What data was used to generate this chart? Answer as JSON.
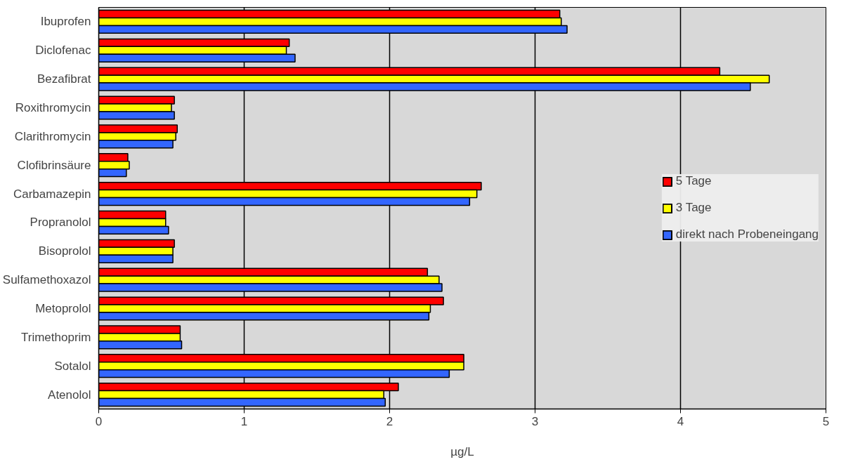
{
  "chart_data": {
    "type": "bar",
    "orientation": "horizontal",
    "xlabel": "µg/L",
    "categories": [
      "Ibuprofen",
      "Diclofenac",
      "Bezafibrat",
      "Roxithromycin",
      "Clarithromycin",
      "Clofibrinsäure",
      "Carbamazepin",
      "Propranolol",
      "Bisoprolol",
      "Sulfamethoxazol",
      "Metoprolol",
      "Trimethoprim",
      "Sotalol",
      "Atenolol"
    ],
    "series": [
      {
        "name": "5 Tage",
        "color": "#ff0000",
        "values": [
          3.17,
          1.31,
          4.27,
          0.52,
          0.54,
          0.2,
          2.63,
          0.46,
          0.52,
          2.26,
          2.37,
          0.56,
          2.51,
          2.06
        ]
      },
      {
        "name": "3 Tage",
        "color": "#ffff00",
        "values": [
          3.18,
          1.29,
          4.61,
          0.5,
          0.53,
          0.21,
          2.6,
          0.46,
          0.51,
          2.34,
          2.28,
          0.56,
          2.51,
          1.96
        ]
      },
      {
        "name": "direkt nach Probeneingang",
        "color": "#3366ff",
        "values": [
          3.22,
          1.35,
          4.48,
          0.52,
          0.51,
          0.19,
          2.55,
          0.48,
          0.51,
          2.36,
          2.27,
          0.57,
          2.41,
          1.97
        ]
      }
    ],
    "xlim": [
      0,
      5
    ],
    "xticks": [
      0,
      1,
      2,
      3,
      4,
      5
    ],
    "grid": "x",
    "legend": "right"
  }
}
